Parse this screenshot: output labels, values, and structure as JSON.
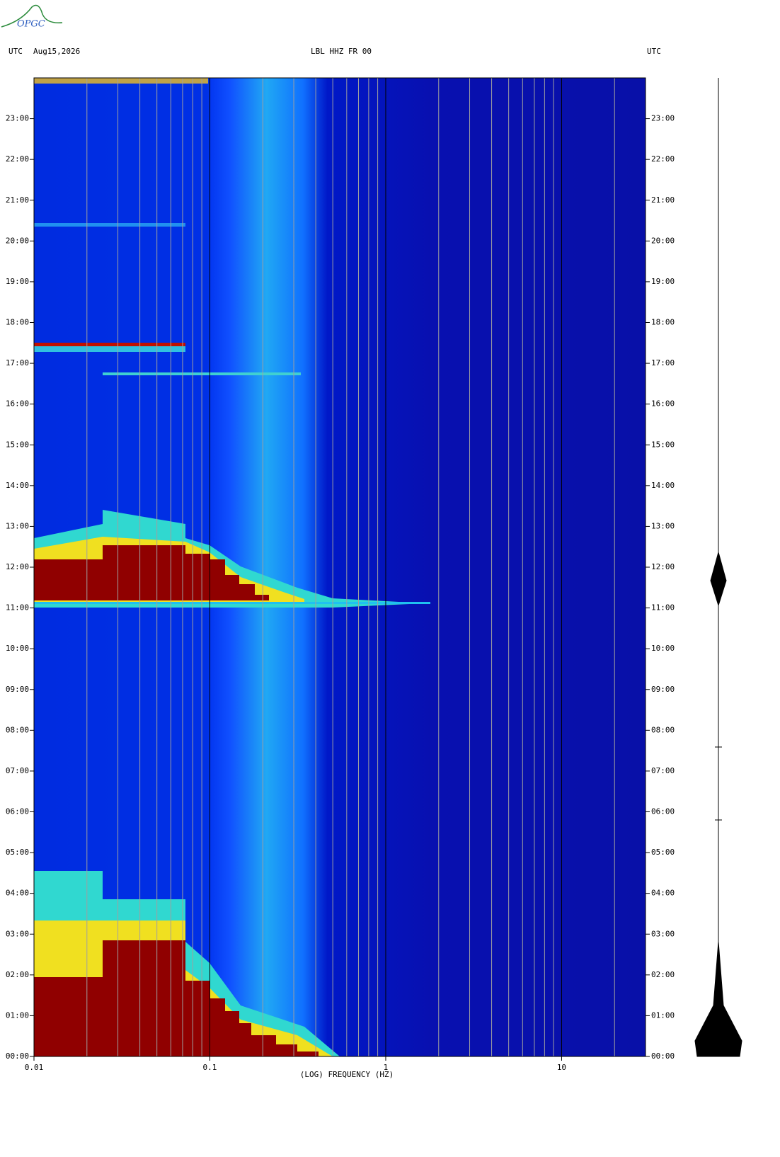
{
  "logo": "OPGC",
  "chart_data": {
    "type": "spectrogram",
    "title": "LBL HHZ FR 00",
    "time_zone_left": "UTC",
    "date": "Aug15,2026",
    "time_zone_right": "UTC",
    "x_label": "(LOG) FREQUENCY (HZ)",
    "x_scale": "log",
    "xlim": [
      0.01,
      30
    ],
    "xticks": [
      0.01,
      0.1,
      1,
      10
    ],
    "minor_xticks": [
      0.02,
      0.03,
      0.04,
      0.05,
      0.06,
      0.07,
      0.08,
      0.09,
      0.2,
      0.3,
      0.4,
      0.5,
      0.6,
      0.7,
      0.8,
      0.9,
      2,
      3,
      4,
      5,
      6,
      7,
      8,
      9,
      20
    ],
    "ylim": [
      0,
      24
    ],
    "yticks": [
      {
        "value": 0,
        "label": "00:00"
      },
      {
        "value": 1,
        "label": "01:00"
      },
      {
        "value": 2,
        "label": "02:00"
      },
      {
        "value": 3,
        "label": "03:00"
      },
      {
        "value": 4,
        "label": "04:00"
      },
      {
        "value": 5,
        "label": "05:00"
      },
      {
        "value": 6,
        "label": "06:00"
      },
      {
        "value": 7,
        "label": "07:00"
      },
      {
        "value": 8,
        "label": "08:00"
      },
      {
        "value": 9,
        "label": "09:00"
      },
      {
        "value": 10,
        "label": "10:00"
      },
      {
        "value": 11,
        "label": "11:00"
      },
      {
        "value": 12,
        "label": "12:00"
      },
      {
        "value": 13,
        "label": "13:00"
      },
      {
        "value": 14,
        "label": "14:00"
      },
      {
        "value": 15,
        "label": "15:00"
      },
      {
        "value": 16,
        "label": "16:00"
      },
      {
        "value": 17,
        "label": "17:00"
      },
      {
        "value": 18,
        "label": "18:00"
      },
      {
        "value": 19,
        "label": "19:00"
      },
      {
        "value": 20,
        "label": "20:00"
      },
      {
        "value": 21,
        "label": "21:00"
      },
      {
        "value": 22,
        "label": "22:00"
      },
      {
        "value": 23,
        "label": "23:00"
      }
    ],
    "grid": true
  }
}
